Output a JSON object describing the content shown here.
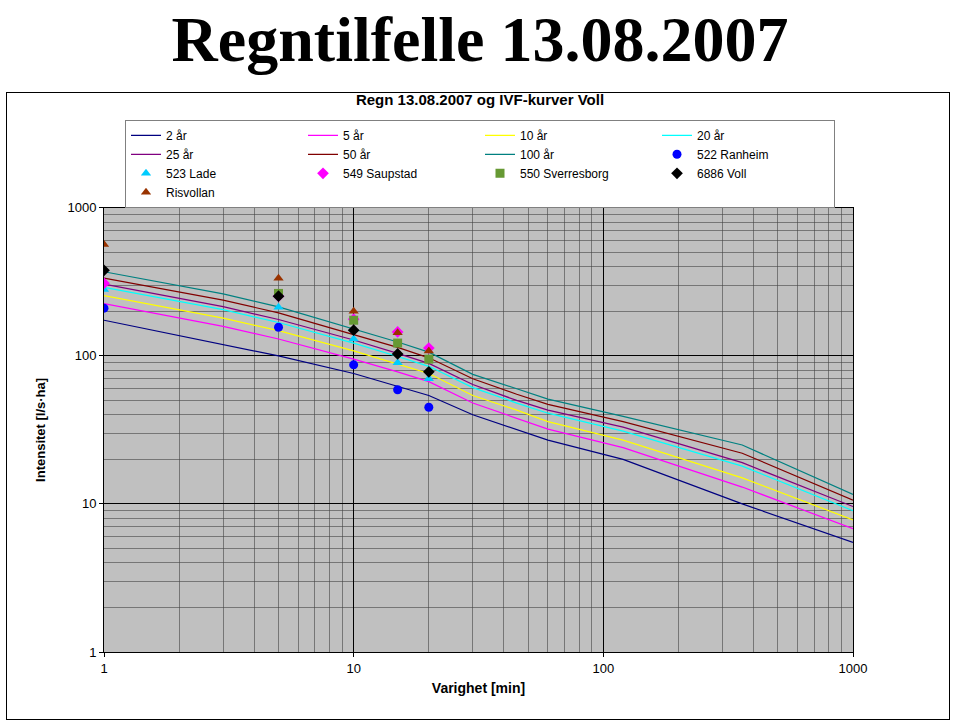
{
  "heading": "Regntilfelle 13.08.2007",
  "chart_data": {
    "type": "line",
    "title": "Regn 13.08.2007 og IVF-kurver Voll",
    "x_label": "Varighet [min]",
    "y_label": "Intensitet [l/s·ha]",
    "log": true,
    "grid": true,
    "legend": "top",
    "xlim": [
      1,
      1000
    ],
    "ylim": [
      1,
      1000
    ],
    "xticks": [
      1,
      10,
      100,
      1000
    ],
    "yticks": [
      1,
      10,
      100,
      1000
    ],
    "series": [
      {
        "name": "2 år",
        "type": "line",
        "color": "#000080",
        "x": [
          1,
          3,
          5,
          10,
          15,
          20,
          30,
          45,
          60,
          120,
          360,
          1000
        ],
        "values": [
          174,
          120,
          100,
          76,
          62,
          54,
          40,
          32,
          27,
          20,
          10,
          5.5
        ]
      },
      {
        "name": "5 år",
        "type": "line",
        "color": "#ff00ff",
        "x": [
          1,
          3,
          5,
          10,
          15,
          20,
          30,
          45,
          60,
          120,
          360,
          1000
        ],
        "values": [
          225,
          158,
          130,
          95,
          78,
          67,
          48,
          38,
          32,
          24,
          13,
          6.8
        ]
      },
      {
        "name": "10 år",
        "type": "line",
        "color": "#ffff00",
        "x": [
          1,
          3,
          5,
          10,
          15,
          20,
          30,
          45,
          60,
          120,
          360,
          1000
        ],
        "values": [
          255,
          180,
          148,
          108,
          88,
          76,
          54,
          43,
          36,
          27,
          15,
          7.8
        ]
      },
      {
        "name": "20 år",
        "type": "line",
        "color": "#00ffff",
        "x": [
          1,
          3,
          5,
          10,
          15,
          20,
          30,
          45,
          60,
          120,
          360,
          1000
        ],
        "values": [
          290,
          205,
          168,
          122,
          99,
          85,
          61,
          48,
          41,
          31,
          18,
          9
        ]
      },
      {
        "name": "25 år",
        "type": "line",
        "color": "#800080",
        "x": [
          1,
          3,
          5,
          10,
          15,
          20,
          30,
          45,
          60,
          120,
          360,
          1000
        ],
        "values": [
          305,
          215,
          176,
          128,
          104,
          89,
          64,
          50,
          43,
          33,
          19,
          9.6
        ]
      },
      {
        "name": "50 år",
        "type": "line",
        "color": "#800000",
        "x": [
          1,
          3,
          5,
          10,
          15,
          20,
          30,
          45,
          60,
          120,
          360,
          1000
        ],
        "values": [
          335,
          238,
          195,
          140,
          114,
          97,
          70,
          55,
          47,
          36,
          22,
          10.6
        ]
      },
      {
        "name": "100 år",
        "type": "line",
        "color": "#008080",
        "x": [
          1,
          3,
          5,
          10,
          15,
          20,
          30,
          45,
          60,
          120,
          360,
          1000
        ],
        "values": [
          370,
          262,
          214,
          152,
          124,
          106,
          75,
          60,
          51,
          39,
          25,
          11.6
        ]
      },
      {
        "name": "522 Ranheim",
        "type": "scatter",
        "marker": "circle",
        "color": "#0000ff",
        "x": [
          1,
          5,
          10,
          15,
          20
        ],
        "values": [
          210,
          156,
          87,
          59,
          45
        ]
      },
      {
        "name": "523 Lade",
        "type": "scatter",
        "marker": "triangle-up",
        "color": "#00ccff",
        "x": [
          1,
          5,
          10,
          15,
          20
        ],
        "values": [
          281,
          213,
          130,
          90,
          70
        ]
      },
      {
        "name": "549 Saupstad",
        "type": "scatter",
        "marker": "diamond",
        "color": "#ff00ff",
        "x": [
          1,
          5,
          10,
          15,
          20
        ],
        "values": [
          309,
          253,
          177,
          145,
          113
        ]
      },
      {
        "name": "550 Sverresborg",
        "type": "scatter",
        "marker": "square",
        "color": "#669933",
        "x": [
          1,
          5,
          10,
          15,
          20
        ],
        "values": [
          null,
          264,
          174,
          122,
          95
        ]
      },
      {
        "name": "6886 Voll",
        "type": "scatter",
        "marker": "diamond",
        "color": "#000000",
        "x": [
          1,
          5,
          10,
          15,
          20
        ],
        "values": [
          378,
          253,
          149,
          103,
          78
        ]
      },
      {
        "name": "Risvollan",
        "type": "scatter",
        "marker": "triangle-up",
        "color": "#993300",
        "x": [
          1,
          5,
          10,
          15,
          20
        ],
        "values": [
          565,
          334,
          200,
          143,
          108
        ]
      }
    ]
  }
}
